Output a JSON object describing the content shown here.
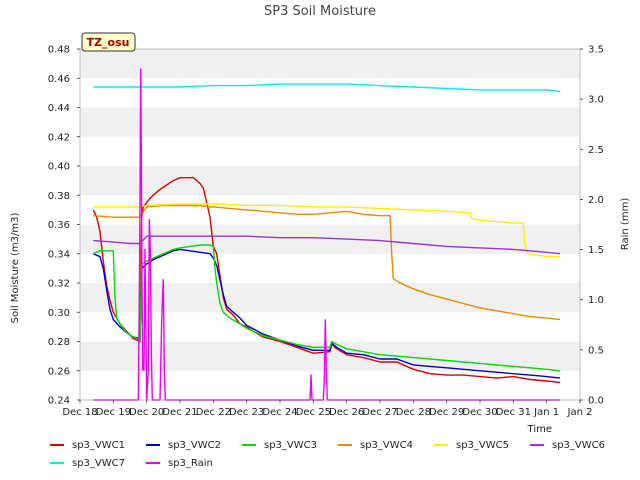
{
  "chart_data": {
    "type": "line",
    "title": "SP3 Soil Moisture",
    "xlabel": "Time",
    "ylabel": "Soil Moisture (m3/m3)",
    "y2label": "Rain (mm)",
    "badge": "TZ_osu",
    "ylim": [
      0.24,
      0.48
    ],
    "y2lim": [
      0.0,
      3.5
    ],
    "yticks": [
      "0.24",
      "0.26",
      "0.28",
      "0.30",
      "0.32",
      "0.34",
      "0.36",
      "0.38",
      "0.40",
      "0.42",
      "0.44",
      "0.46",
      "0.48"
    ],
    "y2ticks": [
      "0.0",
      "0.5",
      "1.0",
      "1.5",
      "2.0",
      "2.5",
      "3.0",
      "3.5"
    ],
    "xticks": [
      "Dec 18",
      "Dec 19",
      "Dec 20",
      "Dec 21",
      "Dec 22",
      "Dec 23",
      "Dec 24",
      "Dec 25",
      "Dec 26",
      "Dec 27",
      "Dec 28",
      "Dec 29",
      "Dec 30",
      "Dec 31",
      "Jan 1",
      "Jan 2"
    ],
    "xlim": [
      0,
      15
    ],
    "grid": "horizontal bands",
    "legend_position": "bottom",
    "series": [
      {
        "name": "sp3_VWC1",
        "color": "#dd0000",
        "axis": "left",
        "points": [
          [
            0.4,
            0.37
          ],
          [
            0.5,
            0.365
          ],
          [
            0.6,
            0.355
          ],
          [
            0.7,
            0.335
          ],
          [
            0.8,
            0.318
          ],
          [
            0.9,
            0.308
          ],
          [
            1.0,
            0.3
          ],
          [
            1.2,
            0.292
          ],
          [
            1.4,
            0.287
          ],
          [
            1.6,
            0.282
          ],
          [
            1.8,
            0.28
          ],
          [
            1.85,
            0.365
          ],
          [
            1.9,
            0.372
          ],
          [
            2.0,
            0.375
          ],
          [
            2.1,
            0.378
          ],
          [
            2.2,
            0.38
          ],
          [
            2.4,
            0.384
          ],
          [
            2.6,
            0.387
          ],
          [
            2.8,
            0.39
          ],
          [
            3.0,
            0.392
          ],
          [
            3.2,
            0.392
          ],
          [
            3.4,
            0.392
          ],
          [
            3.5,
            0.39
          ],
          [
            3.6,
            0.388
          ],
          [
            3.7,
            0.385
          ],
          [
            3.8,
            0.375
          ],
          [
            3.9,
            0.365
          ],
          [
            4.0,
            0.345
          ],
          [
            4.1,
            0.34
          ],
          [
            4.2,
            0.325
          ],
          [
            4.3,
            0.31
          ],
          [
            4.4,
            0.302
          ],
          [
            4.6,
            0.298
          ],
          [
            4.8,
            0.292
          ],
          [
            5.0,
            0.29
          ],
          [
            5.2,
            0.287
          ],
          [
            5.5,
            0.283
          ],
          [
            6.0,
            0.28
          ],
          [
            6.5,
            0.276
          ],
          [
            7.0,
            0.272
          ],
          [
            7.5,
            0.273
          ],
          [
            7.55,
            0.278
          ],
          [
            7.7,
            0.275
          ],
          [
            8.0,
            0.271
          ],
          [
            8.5,
            0.269
          ],
          [
            9.0,
            0.266
          ],
          [
            9.5,
            0.266
          ],
          [
            10.0,
            0.261
          ],
          [
            10.5,
            0.258
          ],
          [
            11.0,
            0.257
          ],
          [
            11.5,
            0.257
          ],
          [
            12.0,
            0.256
          ],
          [
            12.5,
            0.255
          ],
          [
            13.0,
            0.256
          ],
          [
            13.5,
            0.254
          ],
          [
            14.0,
            0.253
          ],
          [
            14.4,
            0.252
          ]
        ]
      },
      {
        "name": "sp3_VWC2",
        "color": "#0000cc",
        "axis": "left",
        "points": [
          [
            0.4,
            0.34
          ],
          [
            0.6,
            0.338
          ],
          [
            0.7,
            0.33
          ],
          [
            0.8,
            0.315
          ],
          [
            0.9,
            0.302
          ],
          [
            1.0,
            0.295
          ],
          [
            1.2,
            0.29
          ],
          [
            1.4,
            0.286
          ],
          [
            1.6,
            0.283
          ],
          [
            1.8,
            0.282
          ],
          [
            1.85,
            0.33
          ],
          [
            2.0,
            0.333
          ],
          [
            2.2,
            0.336
          ],
          [
            2.4,
            0.338
          ],
          [
            2.6,
            0.34
          ],
          [
            2.8,
            0.342
          ],
          [
            3.0,
            0.343
          ],
          [
            3.3,
            0.342
          ],
          [
            3.6,
            0.341
          ],
          [
            3.9,
            0.34
          ],
          [
            4.0,
            0.337
          ],
          [
            4.1,
            0.332
          ],
          [
            4.2,
            0.322
          ],
          [
            4.3,
            0.312
          ],
          [
            4.4,
            0.304
          ],
          [
            4.6,
            0.3
          ],
          [
            4.8,
            0.296
          ],
          [
            5.0,
            0.291
          ],
          [
            5.5,
            0.285
          ],
          [
            6.0,
            0.281
          ],
          [
            6.5,
            0.277
          ],
          [
            7.0,
            0.274
          ],
          [
            7.5,
            0.274
          ],
          [
            7.55,
            0.279
          ],
          [
            7.7,
            0.276
          ],
          [
            8.0,
            0.272
          ],
          [
            8.5,
            0.271
          ],
          [
            9.0,
            0.268
          ],
          [
            9.5,
            0.268
          ],
          [
            10.0,
            0.264
          ],
          [
            10.5,
            0.263
          ],
          [
            11.0,
            0.262
          ],
          [
            11.5,
            0.261
          ],
          [
            12.0,
            0.26
          ],
          [
            12.5,
            0.259
          ],
          [
            13.0,
            0.258
          ],
          [
            13.5,
            0.257
          ],
          [
            14.0,
            0.256
          ],
          [
            14.4,
            0.255
          ]
        ]
      },
      {
        "name": "sp3_VWC3",
        "color": "#00dd00",
        "axis": "left",
        "points": [
          [
            0.4,
            0.34
          ],
          [
            0.6,
            0.342
          ],
          [
            0.8,
            0.342
          ],
          [
            1.0,
            0.342
          ],
          [
            1.05,
            0.31
          ],
          [
            1.1,
            0.296
          ],
          [
            1.2,
            0.292
          ],
          [
            1.4,
            0.286
          ],
          [
            1.6,
            0.283
          ],
          [
            1.8,
            0.281
          ],
          [
            1.85,
            0.333
          ],
          [
            2.0,
            0.335
          ],
          [
            2.2,
            0.337
          ],
          [
            2.4,
            0.339
          ],
          [
            2.6,
            0.341
          ],
          [
            2.8,
            0.343
          ],
          [
            3.0,
            0.344
          ],
          [
            3.3,
            0.345
          ],
          [
            3.6,
            0.346
          ],
          [
            3.9,
            0.346
          ],
          [
            4.0,
            0.345
          ],
          [
            4.05,
            0.33
          ],
          [
            4.1,
            0.32
          ],
          [
            4.2,
            0.306
          ],
          [
            4.3,
            0.3
          ],
          [
            4.5,
            0.296
          ],
          [
            4.8,
            0.292
          ],
          [
            5.0,
            0.289
          ],
          [
            5.5,
            0.284
          ],
          [
            6.0,
            0.281
          ],
          [
            6.5,
            0.278
          ],
          [
            7.0,
            0.276
          ],
          [
            7.5,
            0.276
          ],
          [
            7.55,
            0.28
          ],
          [
            7.7,
            0.278
          ],
          [
            8.0,
            0.275
          ],
          [
            8.5,
            0.273
          ],
          [
            9.0,
            0.271
          ],
          [
            9.5,
            0.27
          ],
          [
            10.0,
            0.269
          ],
          [
            10.5,
            0.268
          ],
          [
            11.0,
            0.267
          ],
          [
            11.5,
            0.266
          ],
          [
            12.0,
            0.265
          ],
          [
            12.5,
            0.264
          ],
          [
            13.0,
            0.263
          ],
          [
            13.5,
            0.262
          ],
          [
            14.0,
            0.261
          ],
          [
            14.4,
            0.26
          ]
        ]
      },
      {
        "name": "sp3_VWC4",
        "color": "#ee8800",
        "axis": "left",
        "points": [
          [
            0.4,
            0.366
          ],
          [
            1.0,
            0.365
          ],
          [
            1.6,
            0.365
          ],
          [
            1.8,
            0.365
          ],
          [
            2.0,
            0.372
          ],
          [
            2.5,
            0.373
          ],
          [
            3.0,
            0.373
          ],
          [
            3.5,
            0.373
          ],
          [
            4.0,
            0.372
          ],
          [
            4.5,
            0.371
          ],
          [
            5.0,
            0.37
          ],
          [
            5.5,
            0.369
          ],
          [
            6.0,
            0.368
          ],
          [
            6.5,
            0.367
          ],
          [
            7.0,
            0.367
          ],
          [
            7.5,
            0.368
          ],
          [
            8.0,
            0.369
          ],
          [
            8.5,
            0.367
          ],
          [
            9.0,
            0.366
          ],
          [
            9.3,
            0.366
          ],
          [
            9.35,
            0.34
          ],
          [
            9.4,
            0.323
          ],
          [
            9.6,
            0.32
          ],
          [
            10.0,
            0.316
          ],
          [
            10.5,
            0.312
          ],
          [
            11.0,
            0.309
          ],
          [
            11.5,
            0.306
          ],
          [
            12.0,
            0.303
          ],
          [
            12.5,
            0.301
          ],
          [
            13.0,
            0.299
          ],
          [
            13.5,
            0.297
          ],
          [
            14.0,
            0.296
          ],
          [
            14.4,
            0.295
          ]
        ]
      },
      {
        "name": "sp3_VWC5",
        "color": "#ffee00",
        "axis": "left",
        "points": [
          [
            0.4,
            0.372
          ],
          [
            1.0,
            0.372
          ],
          [
            1.8,
            0.372
          ],
          [
            2.0,
            0.373
          ],
          [
            3.0,
            0.374
          ],
          [
            4.0,
            0.374
          ],
          [
            5.0,
            0.373
          ],
          [
            6.0,
            0.373
          ],
          [
            7.0,
            0.372
          ],
          [
            8.0,
            0.372
          ],
          [
            9.0,
            0.371
          ],
          [
            10.0,
            0.37
          ],
          [
            11.0,
            0.369
          ],
          [
            11.7,
            0.368
          ],
          [
            11.75,
            0.364
          ],
          [
            12.0,
            0.363
          ],
          [
            12.5,
            0.362
          ],
          [
            13.0,
            0.361
          ],
          [
            13.3,
            0.361
          ],
          [
            13.35,
            0.346
          ],
          [
            13.45,
            0.34
          ],
          [
            14.0,
            0.338
          ],
          [
            14.4,
            0.338
          ]
        ]
      },
      {
        "name": "sp3_VWC6",
        "color": "#9933dd",
        "axis": "left",
        "points": [
          [
            0.4,
            0.349
          ],
          [
            1.0,
            0.348
          ],
          [
            1.5,
            0.347
          ],
          [
            1.8,
            0.347
          ],
          [
            2.0,
            0.352
          ],
          [
            3.0,
            0.352
          ],
          [
            4.0,
            0.352
          ],
          [
            5.0,
            0.352
          ],
          [
            6.0,
            0.351
          ],
          [
            7.0,
            0.351
          ],
          [
            8.0,
            0.35
          ],
          [
            9.0,
            0.349
          ],
          [
            10.0,
            0.347
          ],
          [
            11.0,
            0.345
          ],
          [
            12.0,
            0.344
          ],
          [
            13.0,
            0.343
          ],
          [
            14.0,
            0.341
          ],
          [
            14.4,
            0.34
          ]
        ]
      },
      {
        "name": "sp3_VWC7",
        "color": "#00eeee",
        "axis": "left",
        "points": [
          [
            0.4,
            0.454
          ],
          [
            1.0,
            0.454
          ],
          [
            2.0,
            0.454
          ],
          [
            3.0,
            0.454
          ],
          [
            4.0,
            0.455
          ],
          [
            5.0,
            0.455
          ],
          [
            6.0,
            0.456
          ],
          [
            7.0,
            0.456
          ],
          [
            8.0,
            0.456
          ],
          [
            9.0,
            0.455
          ],
          [
            10.0,
            0.454
          ],
          [
            11.0,
            0.453
          ],
          [
            12.0,
            0.452
          ],
          [
            13.0,
            0.452
          ],
          [
            14.0,
            0.452
          ],
          [
            14.4,
            0.451
          ]
        ]
      },
      {
        "name": "sp3_Rain",
        "color": "#ee00ee",
        "axis": "right",
        "points": [
          [
            0.4,
            0.0
          ],
          [
            1.75,
            0.0
          ],
          [
            1.78,
            1.0
          ],
          [
            1.8,
            2.0
          ],
          [
            1.82,
            3.3
          ],
          [
            1.84,
            2.5
          ],
          [
            1.86,
            1.2
          ],
          [
            1.88,
            0.3
          ],
          [
            1.92,
            0.3
          ],
          [
            1.95,
            1.5
          ],
          [
            1.98,
            0.6
          ],
          [
            2.0,
            0.0
          ],
          [
            2.05,
            0.3
          ],
          [
            2.08,
            1.8
          ],
          [
            2.11,
            1.5
          ],
          [
            2.14,
            0.5
          ],
          [
            2.17,
            0.0
          ],
          [
            2.4,
            0.0
          ],
          [
            2.45,
            0.8
          ],
          [
            2.5,
            1.2
          ],
          [
            2.53,
            0.3
          ],
          [
            2.56,
            0.0
          ],
          [
            6.9,
            0.0
          ],
          [
            6.93,
            0.25
          ],
          [
            6.96,
            0.0
          ],
          [
            7.3,
            0.0
          ],
          [
            7.33,
            0.2
          ],
          [
            7.36,
            0.8
          ],
          [
            7.39,
            0.3
          ],
          [
            7.42,
            0.0
          ],
          [
            14.4,
            0.0
          ]
        ]
      }
    ]
  }
}
